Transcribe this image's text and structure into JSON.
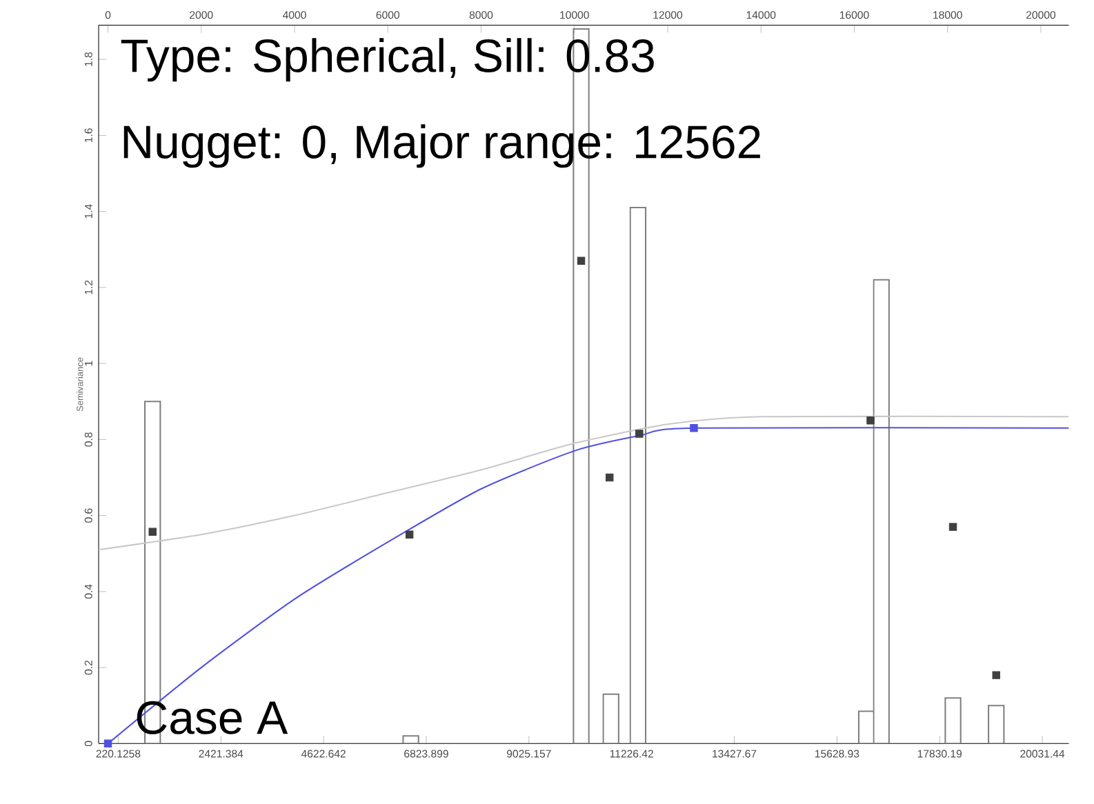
{
  "chart_data": {
    "type": "line",
    "ylabel": "Semivariance",
    "annotations": [
      "Type: Spherical, Sill: 0.83",
      "Nugget: 0, Major range: 12562",
      "Case A"
    ],
    "xlim": [
      -200,
      20600
    ],
    "xticks": [
      220.1258,
      2421.384,
      4622.642,
      6823.899,
      9025.157,
      11226.42,
      13427.67,
      15628.93,
      17830.19,
      20031.44
    ],
    "x2lim": [
      -200,
      20600
    ],
    "x2ticks": [
      0,
      2000,
      4000,
      6000,
      8000,
      10000,
      12000,
      14000,
      16000,
      18000,
      20000
    ],
    "ylim": [
      0,
      1.89
    ],
    "yticks": [
      0,
      0.2,
      0.4,
      0.6,
      0.8,
      1,
      1.2,
      1.4,
      1.6,
      1.8
    ],
    "series": [
      {
        "type": "bar",
        "color": "#808080",
        "x": [
          957,
          6493,
          10145,
          10783,
          11362,
          16261,
          16580,
          18116,
          19043
        ],
        "values": [
          0.9,
          0.02,
          1.88,
          0.13,
          1.41,
          0.085,
          1.22,
          0.12,
          0.1
        ]
      },
      {
        "color": "#c8c8c8",
        "x": [
          -200,
          2000,
          4000,
          6000,
          8000,
          10000,
          12000,
          14000,
          20600
        ],
        "values": [
          0.51,
          0.55,
          0.6,
          0.66,
          0.72,
          0.79,
          0.84,
          0.86,
          0.86
        ]
      },
      {
        "color": "#5050e0",
        "x": [
          0,
          2000,
          4000,
          6000,
          8000,
          10000,
          11400,
          12562,
          20600
        ],
        "values": [
          0,
          0.2,
          0.38,
          0.53,
          0.67,
          0.77,
          0.81,
          0.83,
          0.83
        ]
      },
      {
        "type": "scatter",
        "marker": "square",
        "color": "#404040",
        "x": [
          957,
          6464,
          10145,
          10754,
          11391,
          16348,
          18116,
          19043
        ],
        "values": [
          0.557,
          0.55,
          1.27,
          0.7,
          0.815,
          0.85,
          0.57,
          0.18
        ]
      },
      {
        "type": "scatter",
        "marker": "square",
        "color": "#5050e0",
        "x": [
          0,
          12562
        ],
        "values": [
          0,
          0.83
        ]
      }
    ]
  }
}
